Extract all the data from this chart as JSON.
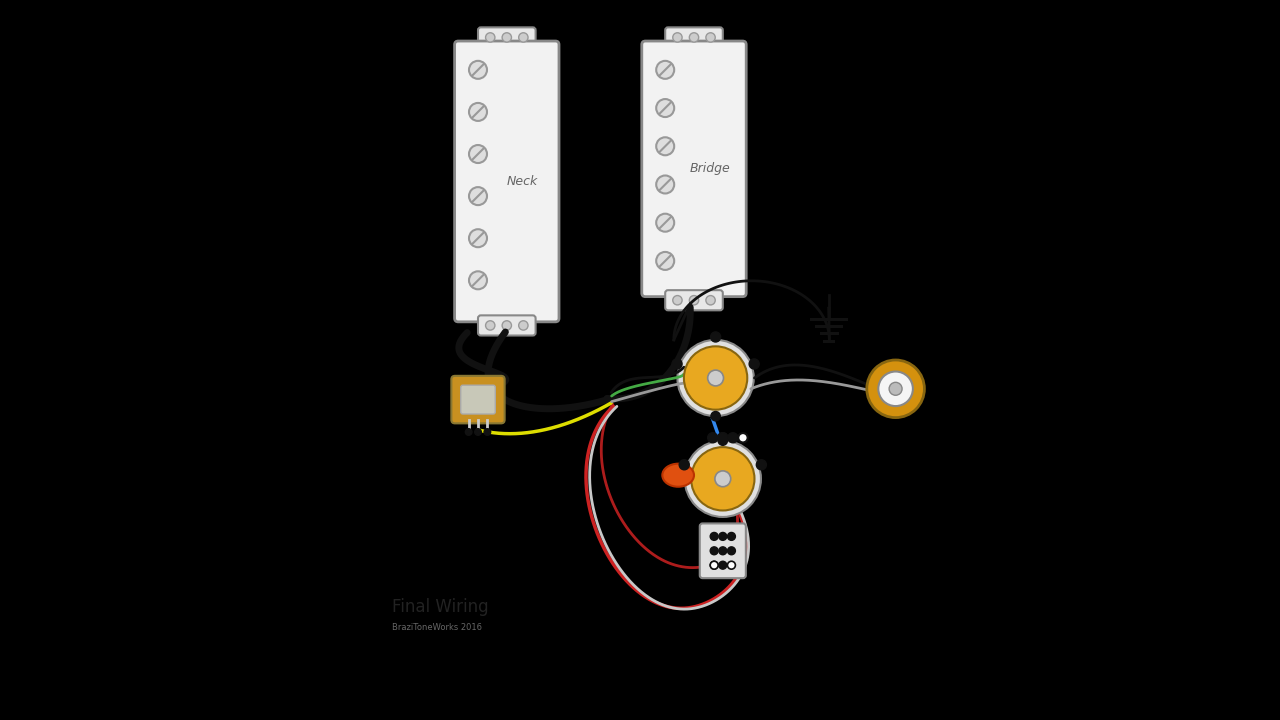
{
  "title": "Final Wiring",
  "subtitle": "BraziToneWorks 2016",
  "neck_label": "Neck",
  "bridge_label": "Bridge",
  "colors": {
    "bg": "#ffffff",
    "border": "#000000",
    "pickup_fill": "#f2f2f2",
    "pickup_stroke": "#888888",
    "screw_fill": "#dedede",
    "screw_slot": "#999999",
    "tab_fill": "#e8e8e8",
    "hole_fill": "#cccccc",
    "black": "#111111",
    "red": "#cc2222",
    "yellow": "#dddd00",
    "green": "#44aa44",
    "gray": "#999999",
    "white_wire": "#eeeeee",
    "blue": "#3388ee",
    "silver": "#c8c8c8",
    "pot_gold": "#e8a820",
    "cap_orange": "#e05010",
    "jack_gold": "#d4910e",
    "switch_gold": "#c89020",
    "switch_silver": "#c8c8b8"
  }
}
